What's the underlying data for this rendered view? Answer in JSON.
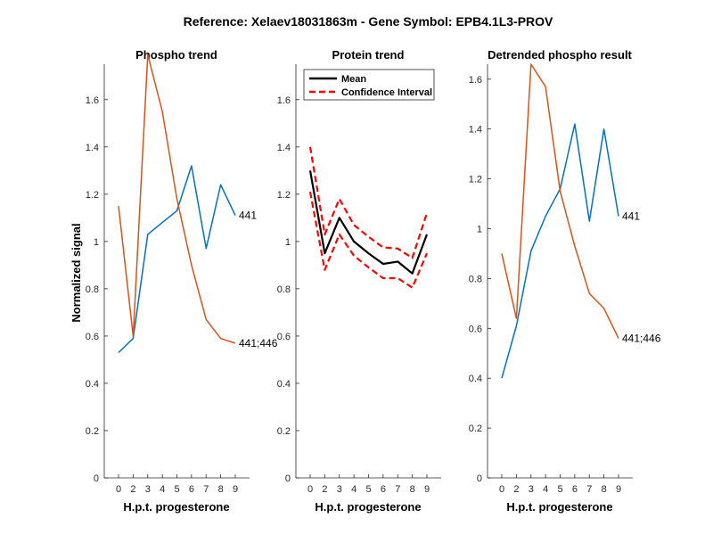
{
  "figure": {
    "title": "Reference:  Xelaev18031863m - Gene Symbol:  EPB4.1L3-PROV",
    "colors": {
      "blue": "#0072bd",
      "orange": "#d95319",
      "black": "#000000",
      "red": "#ff0000"
    }
  },
  "chart_data": [
    {
      "type": "line",
      "title": "Phospho trend",
      "xlabel": "H.p.t. progesterone",
      "ylabel": "Normalized signal",
      "xticks": [
        "0",
        "2",
        "3",
        "4",
        "5",
        "6",
        "7",
        "8",
        "9"
      ],
      "yticks": [
        "0",
        "0.2",
        "0.4",
        "0.6",
        "0.8",
        "1",
        "1.2",
        "1.4",
        "1.6"
      ],
      "ylim": [
        0,
        1.75
      ],
      "series": [
        {
          "name": "441",
          "label": "441",
          "color": "#0072bd",
          "values": [
            0.53,
            0.59,
            1.03,
            1.08,
            1.13,
            1.32,
            0.97,
            1.24,
            1.11
          ]
        },
        {
          "name": "441;446",
          "label": "441;446",
          "color": "#d95319",
          "values": [
            1.15,
            0.6,
            1.79,
            1.55,
            1.18,
            0.9,
            0.67,
            0.59,
            0.57
          ]
        }
      ]
    },
    {
      "type": "line",
      "title": "Protein trend",
      "xlabel": "H.p.t. progesterone",
      "xticks": [
        "0",
        "2",
        "3",
        "4",
        "5",
        "6",
        "7",
        "8",
        "9"
      ],
      "yticks": [
        "0",
        "0.2",
        "0.4",
        "0.6",
        "0.8",
        "1",
        "1.2",
        "1.4",
        "1.6"
      ],
      "ylim": [
        0,
        1.75
      ],
      "legend": {
        "placement": "top-left",
        "entries": [
          "Mean",
          "Confidence Interval"
        ]
      },
      "series": [
        {
          "name": "Mean",
          "style": "solid",
          "color": "#000000",
          "values": [
            1.3,
            0.95,
            1.1,
            1.0,
            0.95,
            0.905,
            0.915,
            0.865,
            1.03
          ]
        },
        {
          "name": "Confidence Interval upper",
          "style": "dashed",
          "color": "#ff0000",
          "values": [
            1.4,
            1.03,
            1.18,
            1.07,
            1.02,
            0.975,
            0.97,
            0.93,
            1.12
          ]
        },
        {
          "name": "Confidence Interval lower",
          "style": "dashed",
          "color": "#ff0000",
          "values": [
            1.21,
            0.88,
            1.03,
            0.94,
            0.89,
            0.845,
            0.845,
            0.805,
            0.95
          ]
        }
      ]
    },
    {
      "type": "line",
      "title": "Detrended phospho result",
      "xlabel": "H.p.t. progesterone",
      "xticks": [
        "0",
        "2",
        "3",
        "4",
        "5",
        "6",
        "7",
        "8",
        "9"
      ],
      "yticks": [
        "0",
        "0.2",
        "0.4",
        "0.6",
        "0.8",
        "1",
        "1.2",
        "1.4",
        "1.6"
      ],
      "ylim": [
        0,
        1.66
      ],
      "series": [
        {
          "name": "441",
          "label": "441",
          "color": "#0072bd",
          "values": [
            0.4,
            0.61,
            0.91,
            1.05,
            1.16,
            1.42,
            1.03,
            1.4,
            1.05
          ]
        },
        {
          "name": "441;446",
          "label": "441;446",
          "color": "#d95319",
          "values": [
            0.9,
            0.64,
            1.66,
            1.57,
            1.15,
            0.93,
            0.74,
            0.68,
            0.56
          ]
        }
      ]
    }
  ]
}
